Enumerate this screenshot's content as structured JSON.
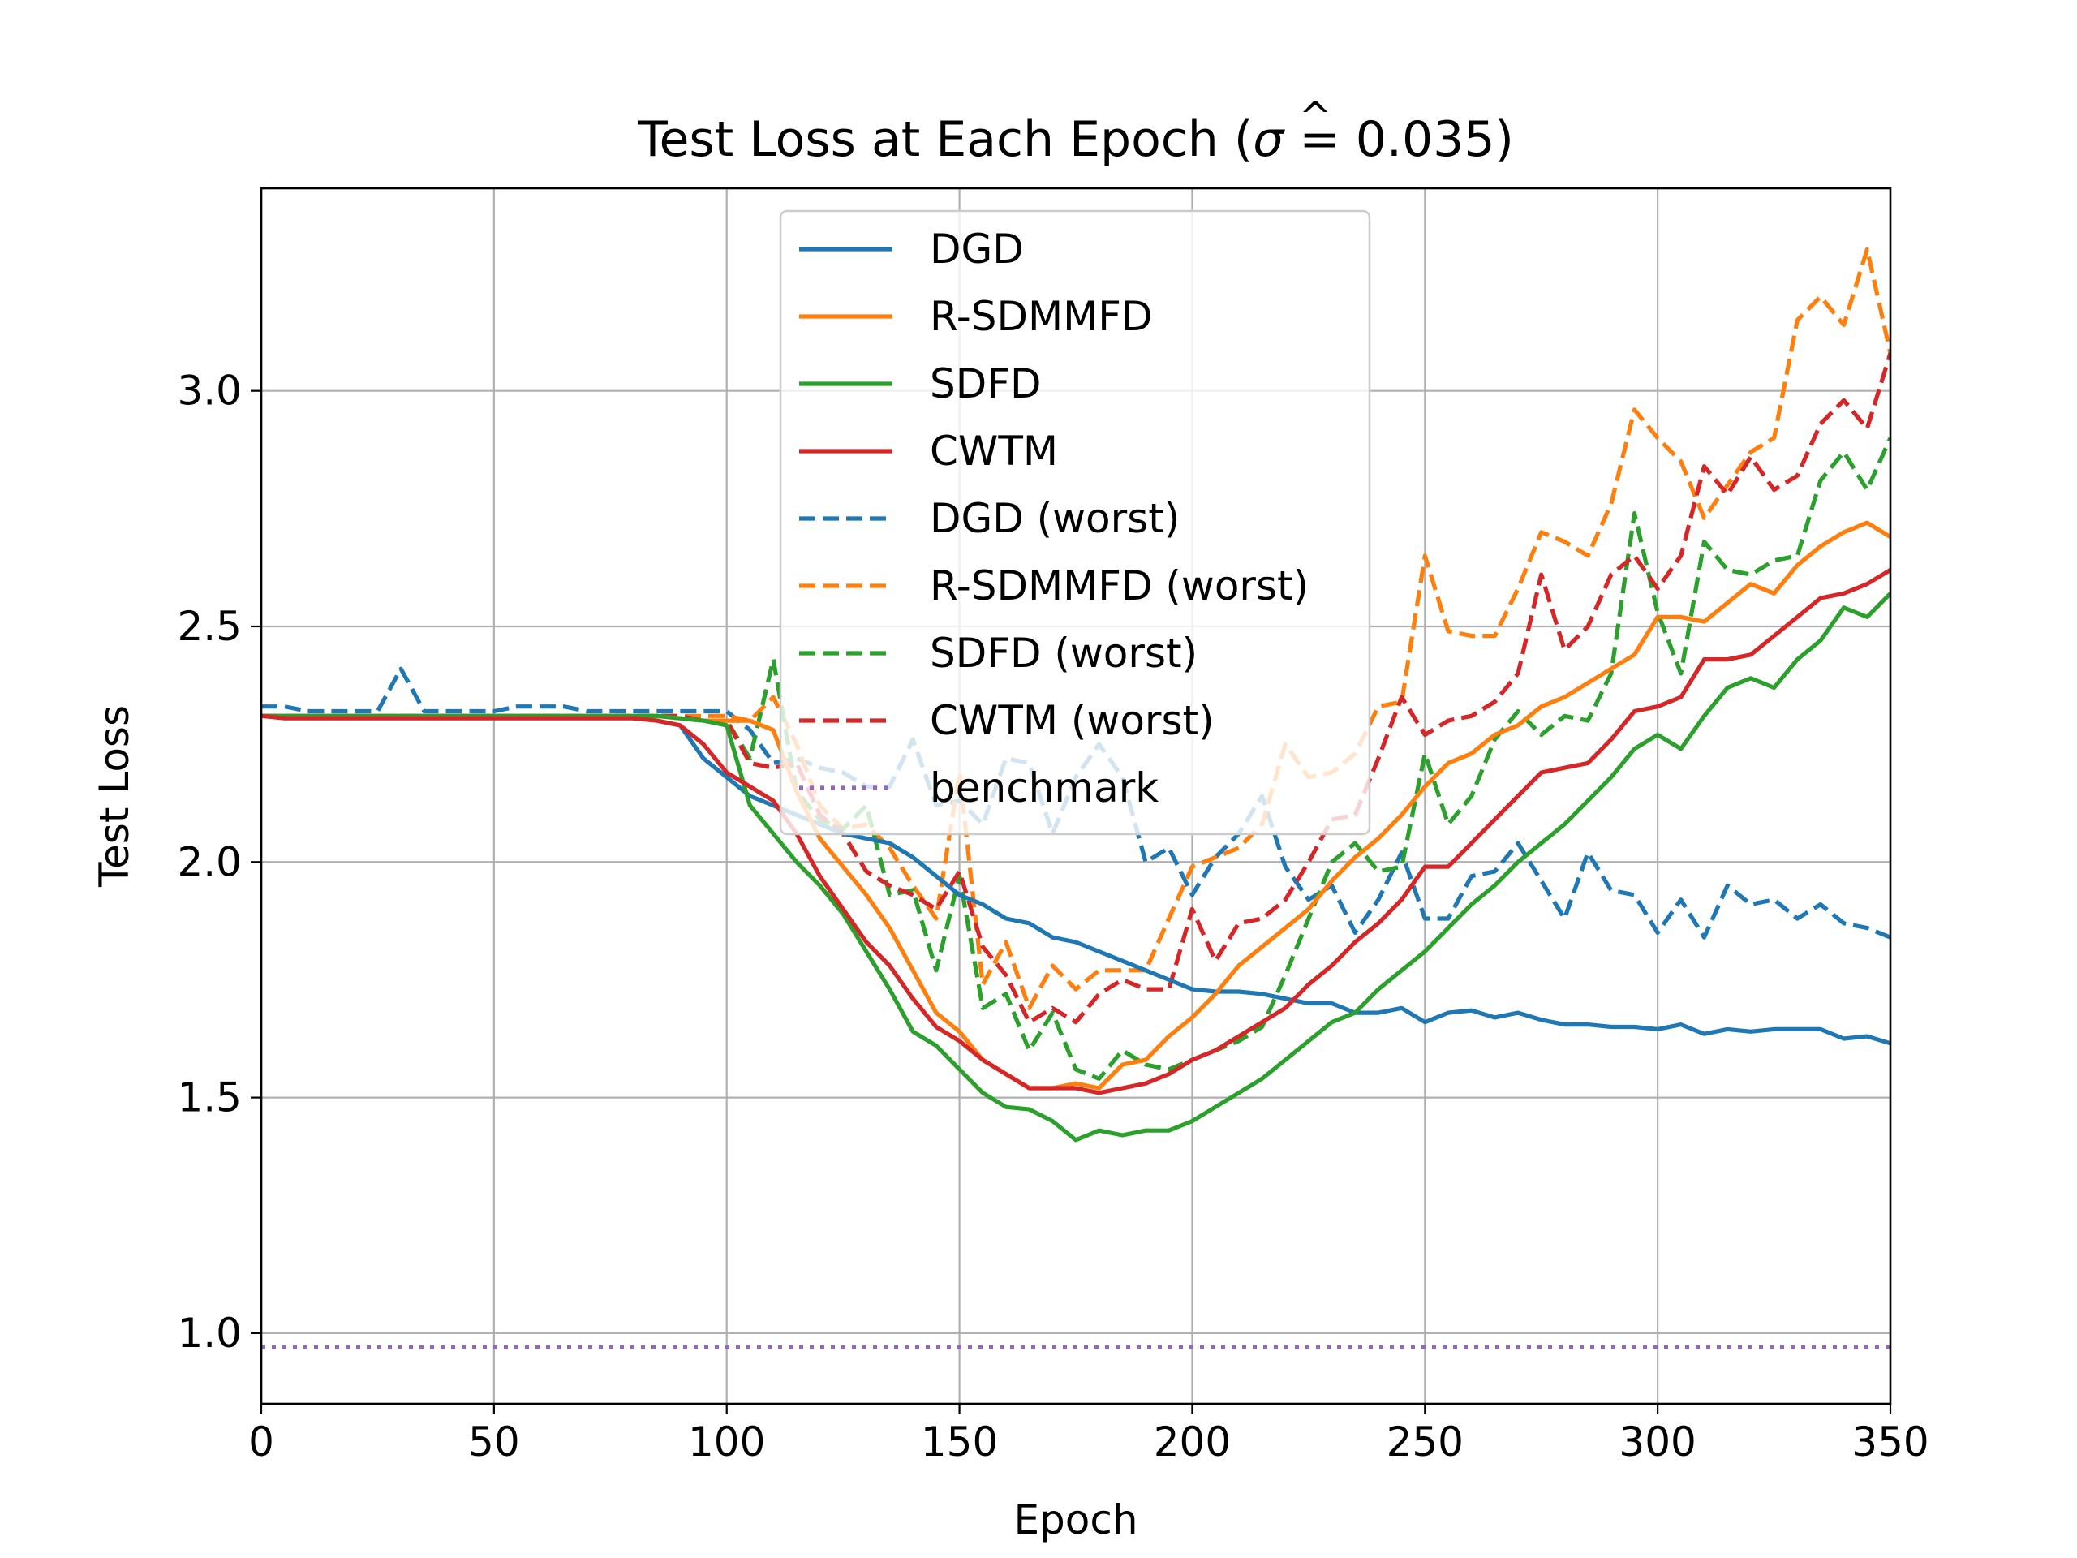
{
  "chart_data": {
    "type": "line",
    "title": "Test Loss at Each Epoch (σ̂ = 0.035)",
    "title_parts": {
      "prefix": "Test Loss at Each Epoch (",
      "sigma": "σ",
      "hat": "^",
      "suffix": " = 0.035)"
    },
    "xlabel": "Epoch",
    "ylabel": "Test Loss",
    "xlim": [
      0,
      350
    ],
    "ylim": [
      0.85,
      3.43
    ],
    "xticks": [
      0,
      50,
      100,
      150,
      200,
      250,
      300,
      350
    ],
    "xtick_labels": [
      "0",
      "50",
      "100",
      "150",
      "200",
      "250",
      "300",
      "350"
    ],
    "yticks": [
      1.0,
      1.5,
      2.0,
      2.5,
      3.0
    ],
    "ytick_labels": [
      "1.0",
      "1.5",
      "2.0",
      "2.5",
      "3.0"
    ],
    "grid": true,
    "legend_position": "upper-center",
    "x": [
      0,
      5,
      10,
      15,
      20,
      25,
      30,
      35,
      40,
      45,
      50,
      55,
      60,
      65,
      70,
      75,
      80,
      85,
      90,
      95,
      100,
      105,
      110,
      115,
      120,
      125,
      130,
      135,
      140,
      145,
      150,
      155,
      160,
      165,
      170,
      175,
      180,
      185,
      190,
      195,
      200,
      205,
      210,
      215,
      220,
      225,
      230,
      235,
      240,
      245,
      250,
      255,
      260,
      265,
      270,
      275,
      280,
      285,
      290,
      295,
      300,
      305,
      310,
      315,
      320,
      325,
      330,
      335,
      340,
      345,
      350
    ],
    "series": [
      {
        "name": "DGD",
        "color": "#1f77b4",
        "style": "solid",
        "values": [
          2.31,
          2.31,
          2.31,
          2.31,
          2.31,
          2.31,
          2.31,
          2.31,
          2.31,
          2.31,
          2.31,
          2.31,
          2.31,
          2.31,
          2.31,
          2.31,
          2.305,
          2.3,
          2.29,
          2.22,
          2.18,
          2.14,
          2.12,
          2.1,
          2.08,
          2.06,
          2.05,
          2.04,
          2.01,
          1.97,
          1.93,
          1.91,
          1.88,
          1.87,
          1.84,
          1.83,
          1.81,
          1.79,
          1.77,
          1.75,
          1.73,
          1.725,
          1.725,
          1.72,
          1.71,
          1.7,
          1.7,
          1.68,
          1.68,
          1.69,
          1.66,
          1.68,
          1.685,
          1.67,
          1.68,
          1.665,
          1.655,
          1.655,
          1.65,
          1.65,
          1.645,
          1.655,
          1.635,
          1.645,
          1.64,
          1.645,
          1.645,
          1.645,
          1.625,
          1.63,
          1.615
        ]
      },
      {
        "name": "R-SDMMFD",
        "color": "#ff7f0e",
        "style": "solid",
        "values": [
          2.31,
          2.31,
          2.31,
          2.31,
          2.31,
          2.31,
          2.31,
          2.31,
          2.31,
          2.31,
          2.31,
          2.31,
          2.31,
          2.31,
          2.31,
          2.31,
          2.31,
          2.31,
          2.305,
          2.3,
          2.3,
          2.3,
          2.28,
          2.15,
          2.05,
          1.99,
          1.93,
          1.86,
          1.77,
          1.68,
          1.64,
          1.58,
          1.55,
          1.52,
          1.52,
          1.53,
          1.52,
          1.57,
          1.58,
          1.63,
          1.67,
          1.72,
          1.78,
          1.82,
          1.86,
          1.9,
          1.96,
          2.01,
          2.05,
          2.1,
          2.16,
          2.21,
          2.23,
          2.27,
          2.29,
          2.33,
          2.35,
          2.38,
          2.41,
          2.44,
          2.52,
          2.52,
          2.51,
          2.55,
          2.59,
          2.57,
          2.63,
          2.67,
          2.7,
          2.72,
          2.69
        ]
      },
      {
        "name": "SDFD",
        "color": "#2ca02c",
        "style": "solid",
        "values": [
          2.31,
          2.31,
          2.31,
          2.31,
          2.31,
          2.31,
          2.31,
          2.31,
          2.31,
          2.31,
          2.31,
          2.31,
          2.31,
          2.31,
          2.31,
          2.31,
          2.31,
          2.31,
          2.305,
          2.3,
          2.29,
          2.12,
          2.06,
          2.0,
          1.95,
          1.89,
          1.81,
          1.73,
          1.64,
          1.61,
          1.56,
          1.51,
          1.48,
          1.475,
          1.45,
          1.41,
          1.43,
          1.42,
          1.43,
          1.43,
          1.45,
          1.48,
          1.51,
          1.54,
          1.58,
          1.62,
          1.66,
          1.68,
          1.73,
          1.77,
          1.81,
          1.86,
          1.91,
          1.95,
          2.0,
          2.04,
          2.08,
          2.13,
          2.18,
          2.24,
          2.27,
          2.24,
          2.31,
          2.37,
          2.39,
          2.37,
          2.43,
          2.47,
          2.54,
          2.52,
          2.57
        ]
      },
      {
        "name": "CWTM",
        "color": "#d62728",
        "style": "solid",
        "values": [
          2.31,
          2.305,
          2.305,
          2.305,
          2.305,
          2.305,
          2.305,
          2.305,
          2.305,
          2.305,
          2.305,
          2.305,
          2.305,
          2.305,
          2.305,
          2.305,
          2.305,
          2.3,
          2.29,
          2.25,
          2.19,
          2.16,
          2.13,
          2.06,
          1.97,
          1.9,
          1.83,
          1.78,
          1.71,
          1.65,
          1.62,
          1.58,
          1.55,
          1.52,
          1.52,
          1.52,
          1.51,
          1.52,
          1.53,
          1.55,
          1.58,
          1.6,
          1.63,
          1.66,
          1.69,
          1.74,
          1.78,
          1.83,
          1.87,
          1.92,
          1.99,
          1.99,
          2.04,
          2.09,
          2.14,
          2.19,
          2.2,
          2.21,
          2.26,
          2.32,
          2.33,
          2.35,
          2.43,
          2.43,
          2.44,
          2.48,
          2.52,
          2.56,
          2.57,
          2.59,
          2.62
        ]
      },
      {
        "name": "DGD (worst)",
        "color": "#1f77b4",
        "style": "dashed",
        "values": [
          2.33,
          2.33,
          2.32,
          2.32,
          2.32,
          2.32,
          2.41,
          2.32,
          2.32,
          2.32,
          2.32,
          2.33,
          2.33,
          2.33,
          2.32,
          2.32,
          2.32,
          2.32,
          2.32,
          2.32,
          2.32,
          2.28,
          2.21,
          2.22,
          2.2,
          2.19,
          2.16,
          2.16,
          2.26,
          2.12,
          2.13,
          2.08,
          2.22,
          2.21,
          2.06,
          2.18,
          2.25,
          2.18,
          2.0,
          2.03,
          1.93,
          2.01,
          2.06,
          2.14,
          1.99,
          1.92,
          1.95,
          1.85,
          1.92,
          2.02,
          1.88,
          1.88,
          1.97,
          1.98,
          2.04,
          1.96,
          1.88,
          2.02,
          1.94,
          1.93,
          1.85,
          1.92,
          1.84,
          1.95,
          1.91,
          1.92,
          1.88,
          1.91,
          1.87,
          1.86,
          1.84
        ]
      },
      {
        "name": "R-SDMMFD (worst)",
        "color": "#ff7f0e",
        "style": "dashed",
        "values": [
          2.31,
          2.31,
          2.31,
          2.31,
          2.31,
          2.31,
          2.31,
          2.31,
          2.31,
          2.31,
          2.31,
          2.31,
          2.31,
          2.31,
          2.31,
          2.31,
          2.31,
          2.31,
          2.31,
          2.31,
          2.31,
          2.3,
          2.35,
          2.25,
          2.12,
          2.07,
          2.08,
          2.03,
          1.95,
          1.88,
          2.19,
          1.74,
          1.83,
          1.69,
          1.78,
          1.73,
          1.77,
          1.77,
          1.77,
          1.88,
          1.99,
          2.01,
          2.03,
          2.08,
          2.25,
          2.18,
          2.19,
          2.23,
          2.33,
          2.34,
          2.65,
          2.49,
          2.48,
          2.48,
          2.58,
          2.7,
          2.68,
          2.65,
          2.76,
          2.96,
          2.9,
          2.85,
          2.73,
          2.8,
          2.87,
          2.9,
          3.15,
          3.2,
          3.14,
          3.3,
          3.08
        ]
      },
      {
        "name": "SDFD (worst)",
        "color": "#2ca02c",
        "style": "dashed",
        "values": [
          2.31,
          2.31,
          2.31,
          2.31,
          2.31,
          2.31,
          2.31,
          2.31,
          2.31,
          2.31,
          2.31,
          2.31,
          2.31,
          2.31,
          2.31,
          2.31,
          2.31,
          2.31,
          2.305,
          2.3,
          2.3,
          2.22,
          2.43,
          2.15,
          2.09,
          2.07,
          2.12,
          1.93,
          1.94,
          1.77,
          1.97,
          1.69,
          1.72,
          1.6,
          1.68,
          1.56,
          1.54,
          1.6,
          1.57,
          1.56,
          1.58,
          1.6,
          1.62,
          1.65,
          1.76,
          1.88,
          2.0,
          2.04,
          1.98,
          1.99,
          2.23,
          2.08,
          2.14,
          2.26,
          2.32,
          2.27,
          2.31,
          2.3,
          2.4,
          2.74,
          2.53,
          2.4,
          2.68,
          2.62,
          2.61,
          2.64,
          2.65,
          2.81,
          2.87,
          2.79,
          2.9
        ]
      },
      {
        "name": "CWTM (worst)",
        "color": "#d62728",
        "style": "dashed",
        "values": [
          2.31,
          2.31,
          2.31,
          2.31,
          2.31,
          2.31,
          2.31,
          2.31,
          2.31,
          2.31,
          2.31,
          2.31,
          2.31,
          2.31,
          2.31,
          2.31,
          2.31,
          2.31,
          2.31,
          2.3,
          2.3,
          2.21,
          2.2,
          2.21,
          2.1,
          2.06,
          1.98,
          1.95,
          1.93,
          1.9,
          1.98,
          1.82,
          1.76,
          1.66,
          1.69,
          1.66,
          1.72,
          1.75,
          1.73,
          1.73,
          1.9,
          1.79,
          1.87,
          1.88,
          1.92,
          2.0,
          2.09,
          2.1,
          2.22,
          2.35,
          2.27,
          2.3,
          2.31,
          2.34,
          2.4,
          2.61,
          2.45,
          2.5,
          2.61,
          2.65,
          2.58,
          2.65,
          2.84,
          2.78,
          2.86,
          2.79,
          2.82,
          2.93,
          2.98,
          2.92,
          3.08
        ]
      },
      {
        "name": "benchmark",
        "color": "#9467bd",
        "style": "dotted",
        "values": [
          0.97,
          0.97,
          0.97,
          0.97,
          0.97,
          0.97,
          0.97,
          0.97,
          0.97,
          0.97,
          0.97,
          0.97,
          0.97,
          0.97,
          0.97,
          0.97,
          0.97,
          0.97,
          0.97,
          0.97,
          0.97,
          0.97,
          0.97,
          0.97,
          0.97,
          0.97,
          0.97,
          0.97,
          0.97,
          0.97,
          0.97,
          0.97,
          0.97,
          0.97,
          0.97,
          0.97,
          0.97,
          0.97,
          0.97,
          0.97,
          0.97,
          0.97,
          0.97,
          0.97,
          0.97,
          0.97,
          0.97,
          0.97,
          0.97,
          0.97,
          0.97,
          0.97,
          0.97,
          0.97,
          0.97,
          0.97,
          0.97,
          0.97,
          0.97,
          0.97,
          0.97,
          0.97,
          0.97,
          0.97,
          0.97,
          0.97,
          0.97,
          0.97,
          0.97,
          0.97,
          0.97
        ]
      }
    ]
  }
}
